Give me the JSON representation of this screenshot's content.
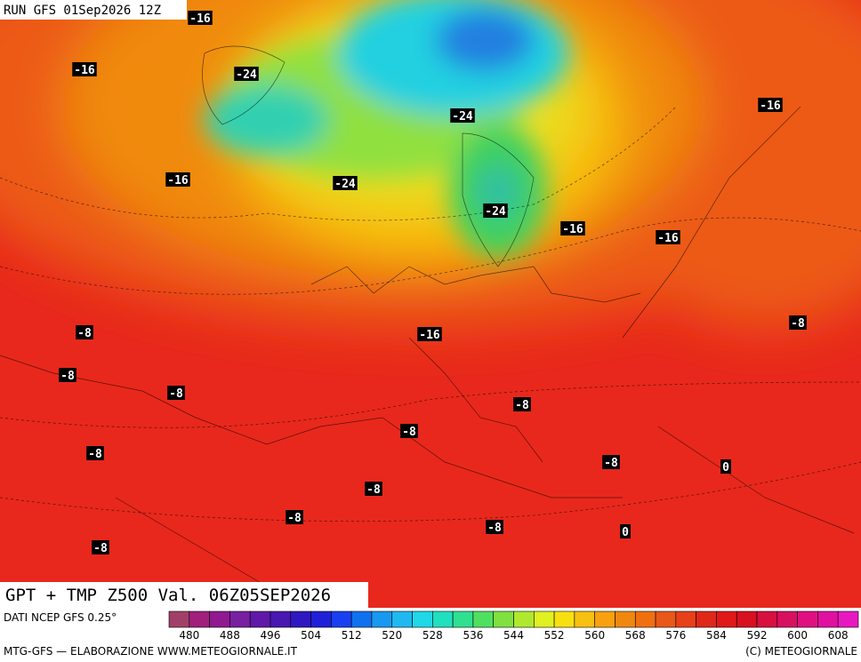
{
  "header": {
    "run": "RUN GFS 01Sep2026 12Z"
  },
  "title": "GPT + TMP Z500 Val. 06Z05SEP2026",
  "contour_labels": [
    "-16",
    "-16",
    "-24",
    "-24",
    "-16",
    "-16",
    "-24",
    "-24",
    "-16",
    "-16",
    "-8",
    "-8",
    "-16",
    "-8",
    "-8",
    "-8",
    "-8",
    "-8",
    "-8",
    "0",
    "-8",
    "-8",
    "-8",
    "0",
    "-8"
  ],
  "colorbar": {
    "colors": [
      "#a04068",
      "#a0207c",
      "#901890",
      "#7820a0",
      "#6018a8",
      "#4818b0",
      "#3018c0",
      "#2020d8",
      "#1840f0",
      "#1070f0",
      "#1898f0",
      "#20b8f0",
      "#20d8e8",
      "#20e0c0",
      "#30e090",
      "#50e060",
      "#80e040",
      "#b0e830",
      "#e0f020",
      "#f8e010",
      "#f8c010",
      "#f8a010",
      "#f08810",
      "#f07010",
      "#e85818",
      "#e84018",
      "#e02818",
      "#e01818",
      "#d81020",
      "#d81040",
      "#d81060",
      "#e01080",
      "#e010a0",
      "#e818c0"
    ],
    "ticks": [
      480,
      488,
      496,
      504,
      512,
      520,
      528,
      536,
      544,
      552,
      560,
      568,
      576,
      584,
      592,
      600,
      608
    ]
  },
  "footer": {
    "source": "DATI NCEP GFS 0.25°",
    "credits": "MTG-GFS — ELABORAZIONE WWW.METEOGIORNALE.IT",
    "copyright": "(C) METEOGIORNALE"
  }
}
